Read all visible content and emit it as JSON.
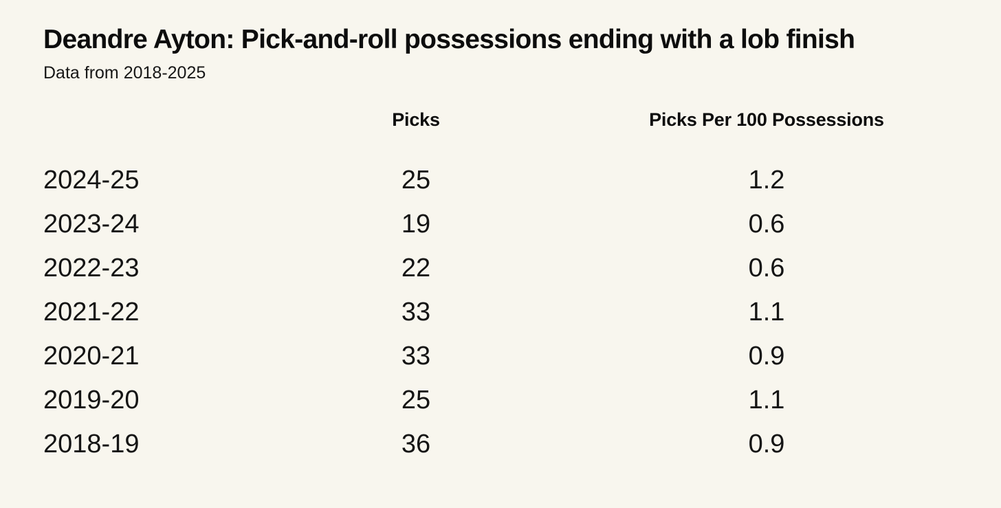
{
  "page": {
    "background_color": "#f8f6ee",
    "text_color": "#111111"
  },
  "header": {
    "title": "Deandre Ayton: Pick-and-roll possessions ending with a lob finish",
    "subtitle": "Data from 2018-2025"
  },
  "chart_data": {
    "type": "table",
    "title": "Deandre Ayton: Pick-and-roll possessions ending with a lob finish",
    "subtitle": "Data from 2018-2025",
    "columns": [
      "",
      "Picks",
      "Picks Per 100 Possessions"
    ],
    "rows": [
      [
        "2024-25",
        "25",
        "1.2"
      ],
      [
        "2023-24",
        "19",
        "0.6"
      ],
      [
        "2022-23",
        "22",
        "0.6"
      ],
      [
        "2021-22",
        "33",
        "1.1"
      ],
      [
        "2020-21",
        "33",
        "0.9"
      ],
      [
        "2019-20",
        "25",
        "1.1"
      ],
      [
        "2018-19",
        "36",
        "0.9"
      ]
    ]
  }
}
